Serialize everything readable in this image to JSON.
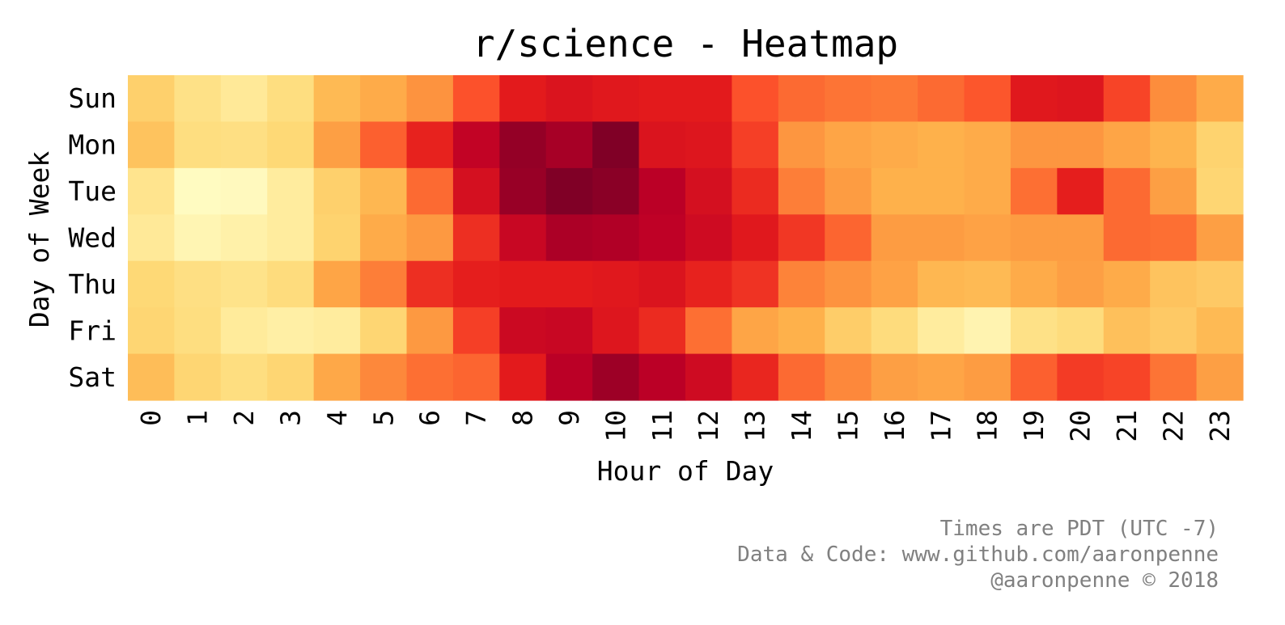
{
  "chart_data": {
    "type": "heatmap",
    "title": "r/science - Heatmap",
    "xlabel": "Hour of Day",
    "ylabel": "Day of Week",
    "x_categories": [
      "0",
      "1",
      "2",
      "3",
      "4",
      "5",
      "6",
      "7",
      "8",
      "9",
      "10",
      "11",
      "12",
      "13",
      "14",
      "15",
      "16",
      "17",
      "18",
      "19",
      "20",
      "21",
      "22",
      "23"
    ],
    "y_categories": [
      "Sun",
      "Mon",
      "Tue",
      "Wed",
      "Thu",
      "Fri",
      "Sat"
    ],
    "colormap": "YlOrRd",
    "colorbar": false,
    "value_range": [
      0,
      100
    ],
    "values": [
      [
        28,
        20,
        15,
        22,
        35,
        40,
        48,
        62,
        75,
        78,
        76,
        75,
        75,
        62,
        57,
        55,
        54,
        57,
        61,
        76,
        77,
        65,
        50,
        40
      ],
      [
        32,
        22,
        21,
        25,
        44,
        59,
        73,
        86,
        96,
        92,
        100,
        78,
        77,
        66,
        47,
        42,
        40,
        38,
        40,
        47,
        47,
        42,
        37,
        27
      ],
      [
        18,
        3,
        4,
        13,
        28,
        36,
        57,
        80,
        95,
        100,
        98,
        88,
        80,
        71,
        53,
        45,
        38,
        38,
        40,
        56,
        74,
        57,
        44,
        26
      ],
      [
        15,
        7,
        10,
        13,
        27,
        40,
        46,
        70,
        84,
        91,
        90,
        87,
        82,
        76,
        68,
        58,
        45,
        45,
        43,
        45,
        45,
        57,
        56,
        44
      ],
      [
        25,
        21,
        19,
        23,
        42,
        53,
        70,
        74,
        75,
        75,
        76,
        78,
        73,
        69,
        52,
        48,
        43,
        36,
        35,
        40,
        44,
        40,
        32,
        30
      ],
      [
        26,
        22,
        14,
        11,
        13,
        26,
        46,
        66,
        83,
        84,
        77,
        71,
        56,
        42,
        38,
        29,
        23,
        13,
        8,
        20,
        23,
        33,
        30,
        35
      ],
      [
        34,
        26,
        22,
        26,
        41,
        51,
        56,
        58,
        75,
        88,
        94,
        88,
        82,
        72,
        57,
        51,
        44,
        42,
        45,
        59,
        67,
        65,
        55,
        44
      ]
    ],
    "grid": false,
    "footer_lines": [
      "Times are PDT (UTC -7)",
      "Data & Code: www.github.com/aaronpenne",
      "@aaronpenne © 2018"
    ]
  }
}
